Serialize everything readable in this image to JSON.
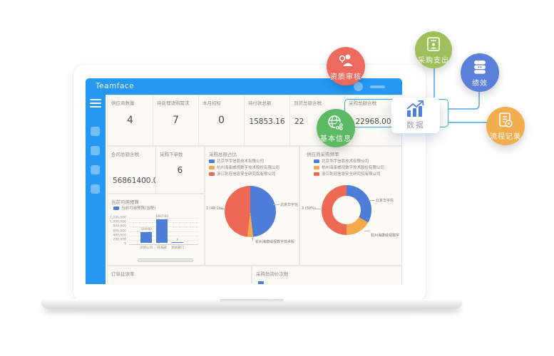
{
  "app": {
    "title": "Teamface"
  },
  "colors": {
    "primary_blue": "#2598f4",
    "sidebar_item_blue": "#74bef8",
    "connector_blue": "#4aa7ee",
    "series": [
      "#4e7cd9",
      "#f5a94d",
      "#ec6a55"
    ],
    "data_node_icon": "#4e7ce0"
  },
  "kpi_row1": [
    {
      "label": "供应商数量",
      "value": "4"
    },
    {
      "label": "待处理请购需求",
      "value": "7"
    },
    {
      "label": "本月招标",
      "value": "0"
    },
    {
      "label": "待付款总额",
      "value": "15853.16"
    },
    {
      "label": "到货总额含税",
      "value": "22"
    },
    {
      "label": "采购总额含税",
      "value": "22968.00"
    }
  ],
  "kpi_row2": [
    {
      "label": "合同总额含税",
      "value": "56861400.00"
    },
    {
      "label": "采购下单数",
      "value": "6"
    }
  ],
  "bottom_row": [
    {
      "label": "订单延误率"
    },
    {
      "label": "采购员询价次数"
    }
  ],
  "chart_data": [
    {
      "type": "bar",
      "title": "当前可用预算",
      "legend": [
        "当前可用预算(含税)"
      ],
      "categories": [
        "深圳公司",
        "开发部",
        "测试部门"
      ],
      "values": [
        500000,
        1082500,
        0
      ],
      "value_labels": [
        "500000",
        "1082500",
        "0"
      ],
      "ylim": [
        0,
        1200000
      ],
      "yticks": [
        "1,200,000",
        "1,000,000",
        "800,000",
        "600,000",
        "400,000",
        "200,000",
        "0"
      ],
      "grid": true,
      "legend_position": "top-left"
    },
    {
      "type": "pie",
      "title": "采购总额占比",
      "legend": [
        "北京华宇信息技术有限公司",
        "杭州海康威视数字技术股份有限公司",
        "浙江乾冠信息安全研究院有限公司"
      ],
      "slices": [
        {
          "name": "北京华宇信息技术有限公司",
          "pct": 48.2
        },
        {
          "name": "杭州海康威视数字技术股份有限公司",
          "pct": 3.6
        },
        {
          "name": "浙江乾冠信息安全研究院有限公司",
          "pct": 48.2
        }
      ],
      "callouts": {
        "left": "1 (48.2%)",
        "right": "北京华宇信",
        "bottom": "杭州海康威视数字技术股"
      }
    },
    {
      "type": "donut",
      "title": "供应商采购频率",
      "legend": [
        "北京华宇信息技术有限公司",
        "杭州海康威视数字技术股份有限公司",
        "浙江乾冠信息安全研究院有限公司"
      ],
      "slices": [
        {
          "name": "北京华宇信息技术有限公司",
          "pct": 33.3
        },
        {
          "name": "杭州海康威视数字技术股份有限公司",
          "pct": 16.7
        },
        {
          "name": "浙江乾冠信息安全研究院有限公司",
          "pct": 50
        }
      ],
      "callouts": {
        "left": "3 (50%)",
        "right": "北京华宇信",
        "bottom": "杭州海康威视数字"
      }
    }
  ],
  "badges": [
    {
      "label": "资质审核",
      "color": "#ed6a5e",
      "icon": "person-check-icon"
    },
    {
      "label": "采购支出",
      "color": "#9dc05c",
      "icon": "document-person-icon"
    },
    {
      "label": "绩效",
      "color": "#5b80d9",
      "icon": "database-icon"
    },
    {
      "label": "流程记录",
      "color": "#f2ae4e",
      "icon": "document-gear-icon"
    },
    {
      "label": "基本信息",
      "color": "#5cb964",
      "icon": "globe-molecule-icon"
    }
  ],
  "data_node": {
    "label": "数据",
    "icon": "trending-chart-icon"
  }
}
